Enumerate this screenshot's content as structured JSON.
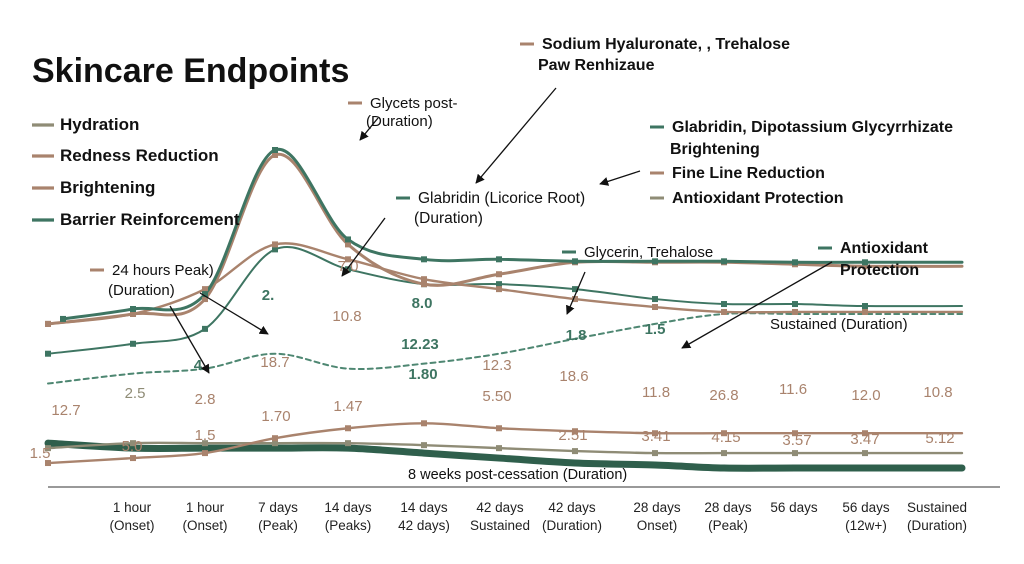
{
  "chart_data": {
    "type": "line",
    "title": "Skincare Endpoints",
    "xlabel": "",
    "ylabel": "",
    "categories": [
      "1 hour\n(Onset)",
      "1 hour\n(Onset)",
      "7 days\n(Peak)",
      "14 days\n(Peaks)",
      "14 days\n42 days)",
      "42 days\nSustained",
      "42 days\n(Duration)",
      "28 days\nOnset)",
      "28 days\n(Peak)",
      "56 days",
      "56 days\n(12w+)",
      "Sustained\n(Duration)"
    ],
    "legend": {
      "placement": "top-left",
      "entries": [
        {
          "name": "Hydration",
          "color": "#8f8c76"
        },
        {
          "name": "Redness Reduction",
          "color": "#a9836d"
        },
        {
          "name": "Brightening",
          "color": "#a9836d"
        },
        {
          "name": "Barrier Reinforcement",
          "color": "#3e7562"
        }
      ]
    },
    "series": [
      {
        "color": "#3e7562",
        "values": [
          0.5,
          1.5,
          3.0,
          17.5,
          8.5,
          6.5,
          6.5,
          6.3,
          6.3,
          6.3,
          6.2,
          6.2
        ]
      },
      {
        "color": "#a9836d",
        "values": [
          0.0,
          1.0,
          2.5,
          17.0,
          8.0,
          4.0,
          5.0,
          6.2,
          6.2,
          6.2,
          6.0,
          5.8
        ]
      },
      {
        "color": "#a9836d",
        "values": [
          0.0,
          1.0,
          3.5,
          8.0,
          6.5,
          4.5,
          3.5,
          2.5,
          1.7,
          1.2,
          1.2,
          1.2
        ]
      },
      {
        "color": "#4e8772",
        "values": [
          -6.0,
          -5.0,
          -4.5,
          -3.0,
          -4.5,
          -4.0,
          -3.0,
          -1.5,
          0.0,
          1.0,
          1.0,
          1.0
        ]
      },
      {
        "color": "#3e7562",
        "values": [
          -3.0,
          -2.0,
          -0.5,
          7.5,
          5.5,
          4.0,
          4.0,
          3.5,
          2.5,
          2.0,
          2.0,
          1.8
        ]
      },
      {
        "color": "#a9836d",
        "values": [
          -14.0,
          -13.5,
          -13.0,
          -11.5,
          -10.5,
          -10.0,
          -10.5,
          -10.8,
          -11.0,
          -11.0,
          -11.0,
          -11.0
        ]
      },
      {
        "color": "#8f8c76",
        "values": [
          -12.5,
          -12.0,
          -12.0,
          -12.0,
          -12.0,
          -12.2,
          -12.5,
          -12.8,
          -13.0,
          -13.0,
          -13.0,
          -13.0
        ]
      },
      {
        "color": "#2f5f4c",
        "values": [
          -12.0,
          -12.5,
          -12.5,
          -12.5,
          -12.5,
          -13.0,
          -13.5,
          -14.0,
          -14.2,
          -14.5,
          -14.5,
          -14.5
        ]
      }
    ],
    "data_labels": [
      {
        "text": "12.7",
        "color": "#a9836d"
      },
      {
        "text": "2.5",
        "color": "#8f8c76"
      },
      {
        "text": "4.",
        "color": "#3e7562"
      },
      {
        "text": "2.8",
        "color": "#a9836d"
      },
      {
        "text": "2.",
        "color": "#3e7562"
      },
      {
        "text": "18.7",
        "color": "#a9836d"
      },
      {
        "text": "7.0",
        "color": "#a9836d"
      },
      {
        "text": "10.8",
        "color": "#a9836d"
      },
      {
        "text": "8.0",
        "color": "#3e7562"
      },
      {
        "text": "12.23",
        "color": "#3e7562"
      },
      {
        "text": "1.80",
        "color": "#3e7562"
      },
      {
        "text": "12.3",
        "color": "#a9836d"
      },
      {
        "text": "5.50",
        "color": "#a9836d"
      },
      {
        "text": "1.8",
        "color": "#3e7562"
      },
      {
        "text": "18.6",
        "color": "#a9836d"
      },
      {
        "text": "1.5",
        "color": "#3e7562"
      },
      {
        "text": "11.8",
        "color": "#a9836d"
      },
      {
        "text": "26.8",
        "color": "#a9836d"
      },
      {
        "text": "11.6",
        "color": "#a9836d"
      },
      {
        "text": "12.0",
        "color": "#a9836d"
      },
      {
        "text": "10.8",
        "color": "#a9836d"
      },
      {
        "text": "1.5",
        "color": "#a9836d"
      },
      {
        "text": "5.0",
        "color": "#a9836d"
      },
      {
        "text": "1.5",
        "color": "#a9836d"
      },
      {
        "text": "1.70",
        "color": "#a9836d"
      },
      {
        "text": "1.47",
        "color": "#a9836d"
      },
      {
        "text": "2.51",
        "color": "#a9836d"
      },
      {
        "text": "3.41",
        "color": "#a9836d"
      },
      {
        "text": "4.15",
        "color": "#a9836d"
      },
      {
        "text": "3.57",
        "color": "#a9836d"
      },
      {
        "text": "3.47",
        "color": "#a9836d"
      },
      {
        "text": "5.12",
        "color": "#a9836d"
      }
    ],
    "annotations": [
      {
        "lines": [
          "Glycets post-",
          "(Duration)"
        ],
        "color": "#a9836d"
      },
      {
        "lines": [
          "Sodium Hyaluronate, , Trehalose",
          "Paw Renhizaue"
        ],
        "color": "#a9836d"
      },
      {
        "lines": [
          "Glabridin (Licorice Root)",
          "(Duration)"
        ],
        "color": "#3e7562"
      },
      {
        "lines": [
          "Glabridin, Dipotassium Glycyrrhizate",
          "Brightening"
        ],
        "color": "#3e7562"
      },
      {
        "lines": [
          "Fine Line Reduction"
        ],
        "color": "#a9836d"
      },
      {
        "lines": [
          "Antioxidant Protection"
        ],
        "color": "#8f8c76"
      },
      {
        "lines": [
          "Glycerin, Trehalose"
        ],
        "color": "#3e7562"
      },
      {
        "lines": [
          "Antioxidant",
          "Protection"
        ],
        "color": "#3e7562"
      },
      {
        "lines": [
          "24 hours Peak)",
          "(Duration)"
        ],
        "color": "#a9836d"
      },
      {
        "lines": [
          "Sustained (Duration)"
        ],
        "color": ""
      },
      {
        "lines": [
          "8 weeks post-cessation (Duration)"
        ],
        "color": ""
      }
    ],
    "grid": false
  }
}
